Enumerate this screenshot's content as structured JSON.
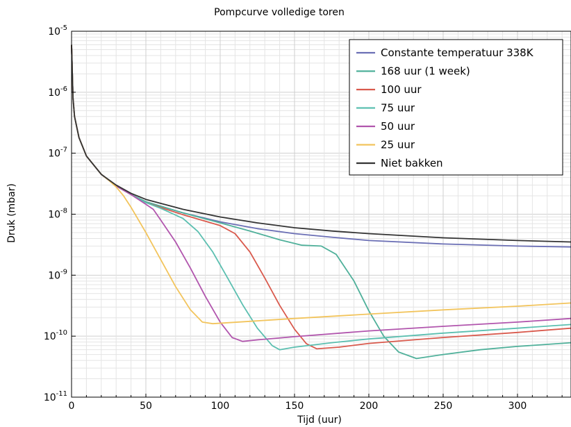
{
  "chart_data": {
    "type": "line",
    "title": "Pompcurve volledige toren",
    "xlabel": "Tijd (uur)",
    "ylabel": "Druk (mbar)",
    "xlim": [
      0,
      336
    ],
    "ylim": [
      1e-11,
      1e-05
    ],
    "y_scale": "log",
    "x_ticks": [
      "0",
      "50",
      "100",
      "150",
      "200",
      "250",
      "300"
    ],
    "y_ticks": [
      {
        "base": "10",
        "exp": "-11"
      },
      {
        "base": "10",
        "exp": "-10"
      },
      {
        "base": "10",
        "exp": "-9"
      },
      {
        "base": "10",
        "exp": "-8"
      },
      {
        "base": "10",
        "exp": "-7"
      },
      {
        "base": "10",
        "exp": "-6"
      },
      {
        "base": "10",
        "exp": "-5"
      }
    ],
    "grid": true,
    "legend_position": "top-right",
    "series": [
      {
        "name": "Constante temperatuur 338K",
        "color": "#6b6fb5",
        "points": [
          [
            0,
            6e-06
          ],
          [
            1,
            8e-07
          ],
          [
            2,
            4e-07
          ],
          [
            5,
            1.8e-07
          ],
          [
            10,
            9e-08
          ],
          [
            20,
            4.5e-08
          ],
          [
            30,
            2.9e-08
          ],
          [
            40,
            2.1e-08
          ],
          [
            50,
            1.6e-08
          ],
          [
            75,
            1.05e-08
          ],
          [
            100,
            7.5e-09
          ],
          [
            125,
            5.8e-09
          ],
          [
            150,
            4.8e-09
          ],
          [
            175,
            4.2e-09
          ],
          [
            200,
            3.7e-09
          ],
          [
            250,
            3.25e-09
          ],
          [
            300,
            3e-09
          ],
          [
            336,
            2.9e-09
          ]
        ]
      },
      {
        "name": "168 uur (1 week)",
        "color": "#4fb09a",
        "points": [
          [
            0,
            6e-06
          ],
          [
            1,
            8e-07
          ],
          [
            2,
            4e-07
          ],
          [
            5,
            1.8e-07
          ],
          [
            10,
            9e-08
          ],
          [
            20,
            4.5e-08
          ],
          [
            30,
            2.9e-08
          ],
          [
            40,
            2.1e-08
          ],
          [
            50,
            1.6e-08
          ],
          [
            75,
            1.05e-08
          ],
          [
            100,
            7.2e-09
          ],
          [
            120,
            5.3e-09
          ],
          [
            140,
            3.8e-09
          ],
          [
            155,
            3.1e-09
          ],
          [
            168,
            3e-09
          ],
          [
            178,
            2.2e-09
          ],
          [
            190,
            8e-10
          ],
          [
            200,
            2.6e-10
          ],
          [
            210,
            1e-10
          ],
          [
            220,
            5.5e-11
          ],
          [
            232,
            4.3e-11
          ],
          [
            250,
            5e-11
          ],
          [
            275,
            6e-11
          ],
          [
            300,
            6.8e-11
          ],
          [
            336,
            7.8e-11
          ]
        ]
      },
      {
        "name": "100 uur",
        "color": "#d9594c",
        "points": [
          [
            0,
            6e-06
          ],
          [
            1,
            8e-07
          ],
          [
            2,
            4e-07
          ],
          [
            5,
            1.8e-07
          ],
          [
            10,
            9e-08
          ],
          [
            20,
            4.5e-08
          ],
          [
            30,
            2.9e-08
          ],
          [
            40,
            2.1e-08
          ],
          [
            50,
            1.55e-08
          ],
          [
            75,
            9.8e-09
          ],
          [
            100,
            6.5e-09
          ],
          [
            110,
            4.8e-09
          ],
          [
            120,
            2.4e-09
          ],
          [
            130,
            9e-10
          ],
          [
            140,
            3.2e-10
          ],
          [
            150,
            1.3e-10
          ],
          [
            158,
            7.5e-11
          ],
          [
            165,
            6.2e-11
          ],
          [
            180,
            6.6e-11
          ],
          [
            200,
            7.6e-11
          ],
          [
            250,
            9.5e-11
          ],
          [
            300,
            1.15e-10
          ],
          [
            336,
            1.35e-10
          ]
        ]
      },
      {
        "name": "75 uur",
        "color": "#5bbfb0",
        "points": [
          [
            0,
            6e-06
          ],
          [
            1,
            8e-07
          ],
          [
            2,
            4e-07
          ],
          [
            5,
            1.8e-07
          ],
          [
            10,
            9e-08
          ],
          [
            20,
            4.5e-08
          ],
          [
            30,
            2.9e-08
          ],
          [
            40,
            2.1e-08
          ],
          [
            50,
            1.55e-08
          ],
          [
            60,
            1.25e-08
          ],
          [
            75,
            8.5e-09
          ],
          [
            85,
            5.2e-09
          ],
          [
            95,
            2.4e-09
          ],
          [
            105,
            9e-10
          ],
          [
            115,
            3.3e-10
          ],
          [
            125,
            1.35e-10
          ],
          [
            135,
            7e-11
          ],
          [
            140,
            6e-11
          ],
          [
            150,
            6.6e-11
          ],
          [
            175,
            7.8e-11
          ],
          [
            200,
            9e-11
          ],
          [
            250,
            1.12e-10
          ],
          [
            300,
            1.35e-10
          ],
          [
            336,
            1.55e-10
          ]
        ]
      },
      {
        "name": "50 uur",
        "color": "#b155ad",
        "points": [
          [
            0,
            6e-06
          ],
          [
            1,
            8e-07
          ],
          [
            2,
            4e-07
          ],
          [
            5,
            1.8e-07
          ],
          [
            10,
            9e-08
          ],
          [
            20,
            4.5e-08
          ],
          [
            30,
            2.9e-08
          ],
          [
            40,
            2.1e-08
          ],
          [
            50,
            1.45e-08
          ],
          [
            55,
            1.2e-08
          ],
          [
            60,
            8e-09
          ],
          [
            70,
            3.5e-09
          ],
          [
            80,
            1.3e-09
          ],
          [
            90,
            4.5e-10
          ],
          [
            100,
            1.7e-10
          ],
          [
            108,
            9.5e-11
          ],
          [
            115,
            8.2e-11
          ],
          [
            125,
            8.7e-11
          ],
          [
            150,
            9.8e-11
          ],
          [
            200,
            1.22e-10
          ],
          [
            250,
            1.45e-10
          ],
          [
            300,
            1.7e-10
          ],
          [
            336,
            1.95e-10
          ]
        ]
      },
      {
        "name": "25 uur",
        "color": "#f2c45c",
        "points": [
          [
            0,
            6e-06
          ],
          [
            1,
            8e-07
          ],
          [
            2,
            4e-07
          ],
          [
            5,
            1.8e-07
          ],
          [
            10,
            9e-08
          ],
          [
            20,
            4.5e-08
          ],
          [
            25,
            3.6e-08
          ],
          [
            30,
            2.8e-08
          ],
          [
            35,
            2e-08
          ],
          [
            40,
            1.3e-08
          ],
          [
            50,
            5e-09
          ],
          [
            60,
            1.8e-09
          ],
          [
            70,
            6.5e-10
          ],
          [
            80,
            2.7e-10
          ],
          [
            88,
            1.7e-10
          ],
          [
            95,
            1.6e-10
          ],
          [
            120,
            1.75e-10
          ],
          [
            150,
            1.95e-10
          ],
          [
            200,
            2.3e-10
          ],
          [
            250,
            2.7e-10
          ],
          [
            300,
            3.1e-10
          ],
          [
            336,
            3.5e-10
          ]
        ]
      },
      {
        "name": "Niet bakken",
        "color": "#333333",
        "points": [
          [
            0,
            6e-06
          ],
          [
            1,
            8e-07
          ],
          [
            2,
            4e-07
          ],
          [
            5,
            1.8e-07
          ],
          [
            10,
            9e-08
          ],
          [
            20,
            4.5e-08
          ],
          [
            30,
            3e-08
          ],
          [
            40,
            2.2e-08
          ],
          [
            50,
            1.75e-08
          ],
          [
            75,
            1.2e-08
          ],
          [
            100,
            9e-09
          ],
          [
            125,
            7.2e-09
          ],
          [
            150,
            6e-09
          ],
          [
            175,
            5.3e-09
          ],
          [
            200,
            4.8e-09
          ],
          [
            250,
            4.1e-09
          ],
          [
            300,
            3.7e-09
          ],
          [
            336,
            3.5e-09
          ]
        ]
      }
    ]
  }
}
